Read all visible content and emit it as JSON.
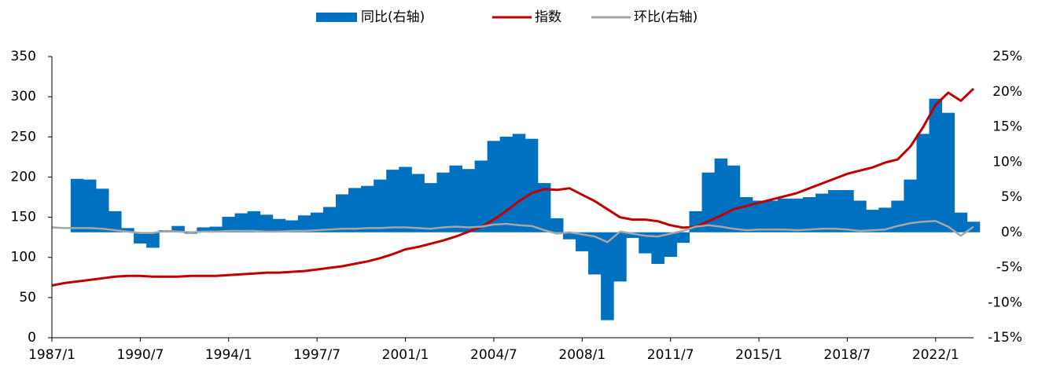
{
  "chart_data": {
    "type": "bar-line",
    "categories": [
      "1987/1",
      null,
      null,
      null,
      null,
      null,
      null,
      "1990/7",
      null,
      null,
      null,
      null,
      null,
      null,
      "1994/1",
      null,
      null,
      null,
      null,
      null,
      null,
      "1997/7",
      null,
      null,
      null,
      null,
      null,
      null,
      "2001/1",
      null,
      null,
      null,
      null,
      null,
      null,
      "2004/7",
      null,
      null,
      null,
      null,
      null,
      null,
      "2008/1",
      null,
      null,
      null,
      null,
      null,
      null,
      "2011/7",
      null,
      null,
      null,
      null,
      null,
      null,
      "2015/1",
      null,
      null,
      null,
      null,
      null,
      null,
      "2018/7",
      null,
      null,
      null,
      null,
      null,
      null,
      "2022/1",
      null,
      null,
      null
    ],
    "series": [
      {
        "name": "同比(右轴)",
        "type": "bar",
        "axis": "y2",
        "color": "#0070c0",
        "values": [
          null,
          null,
          7.6,
          7.5,
          6.2,
          3.0,
          0.6,
          -1.6,
          -2.2,
          0.3,
          0.9,
          -0.2,
          0.7,
          0.8,
          2.2,
          2.7,
          3.0,
          2.5,
          1.9,
          1.7,
          2.4,
          2.8,
          3.6,
          5.4,
          6.3,
          6.6,
          7.5,
          8.9,
          9.3,
          8.3,
          7.0,
          8.5,
          9.5,
          9.0,
          10.2,
          13.0,
          13.6,
          14.0,
          13.3,
          7.0,
          2.0,
          -1.0,
          -2.7,
          -6.0,
          -12.5,
          -7.0,
          -0.8,
          -3.0,
          -4.5,
          -3.5,
          -1.5,
          3.0,
          8.5,
          10.5,
          9.5,
          5.0,
          4.5,
          4.5,
          4.8,
          4.8,
          5.0,
          5.5,
          6.0,
          6.0,
          4.5,
          3.2,
          3.5,
          4.5,
          7.5,
          14.0,
          19.0,
          17.0,
          2.8,
          1.5
        ]
      },
      {
        "name": "指数",
        "type": "line",
        "color": "#c00000",
        "values": [
          65,
          68,
          70,
          72,
          74,
          76,
          77,
          77,
          76,
          76,
          76,
          77,
          77,
          77,
          78,
          79,
          80,
          81,
          81,
          82,
          83,
          85,
          87,
          89,
          92,
          95,
          99,
          104,
          110,
          113,
          117,
          121,
          126,
          132,
          138,
          147,
          158,
          170,
          180,
          185,
          184,
          186,
          178,
          170,
          160,
          150,
          147,
          147,
          145,
          140,
          137,
          138,
          145,
          152,
          160,
          164,
          168,
          172,
          176,
          180,
          186,
          192,
          198,
          204,
          208,
          212,
          218,
          222,
          238,
          262,
          290,
          305,
          295,
          310
        ]
      },
      {
        "name": "环比(右轴)",
        "type": "line",
        "axis": "y2",
        "color": "#a6a6a6",
        "values": [
          0.7,
          0.6,
          0.6,
          0.6,
          0.5,
          0.3,
          0.1,
          -0.1,
          -0.1,
          0.2,
          0.1,
          0,
          0.1,
          0.1,
          0.2,
          0.2,
          0.2,
          0.1,
          0.1,
          0.2,
          0.2,
          0.3,
          0.4,
          0.5,
          0.5,
          0.6,
          0.6,
          0.7,
          0.7,
          0.6,
          0.5,
          0.7,
          0.8,
          0.7,
          0.8,
          1.1,
          1.2,
          1.0,
          0.9,
          0.3,
          -0.2,
          0.0,
          -0.3,
          -0.6,
          -1.4,
          0.1,
          -0.2,
          -0.5,
          -0.6,
          -0.2,
          0.2,
          0.8,
          1.0,
          0.8,
          0.5,
          0.3,
          0.4,
          0.4,
          0.4,
          0.3,
          0.4,
          0.5,
          0.5,
          0.4,
          0.2,
          0.3,
          0.4,
          0.9,
          1.3,
          1.5,
          1.6,
          0.8,
          -0.5,
          0.8
        ]
      }
    ],
    "ylim": [
      0,
      350
    ],
    "yticks": [
      0,
      50,
      100,
      150,
      200,
      250,
      300,
      350
    ],
    "y2lim": [
      -15,
      25
    ],
    "y2ticks": [
      {
        "value": -15,
        "label": "-15%"
      },
      {
        "value": -10,
        "label": "-10%"
      },
      {
        "value": -5,
        "label": "-5%"
      },
      {
        "value": 0,
        "label": "0%"
      },
      {
        "value": 5,
        "label": "5%"
      },
      {
        "value": 10,
        "label": "10%"
      },
      {
        "value": 15,
        "label": "15%"
      },
      {
        "value": 20,
        "label": "20%"
      },
      {
        "value": 25,
        "label": "25%"
      }
    ],
    "legend": "top"
  }
}
